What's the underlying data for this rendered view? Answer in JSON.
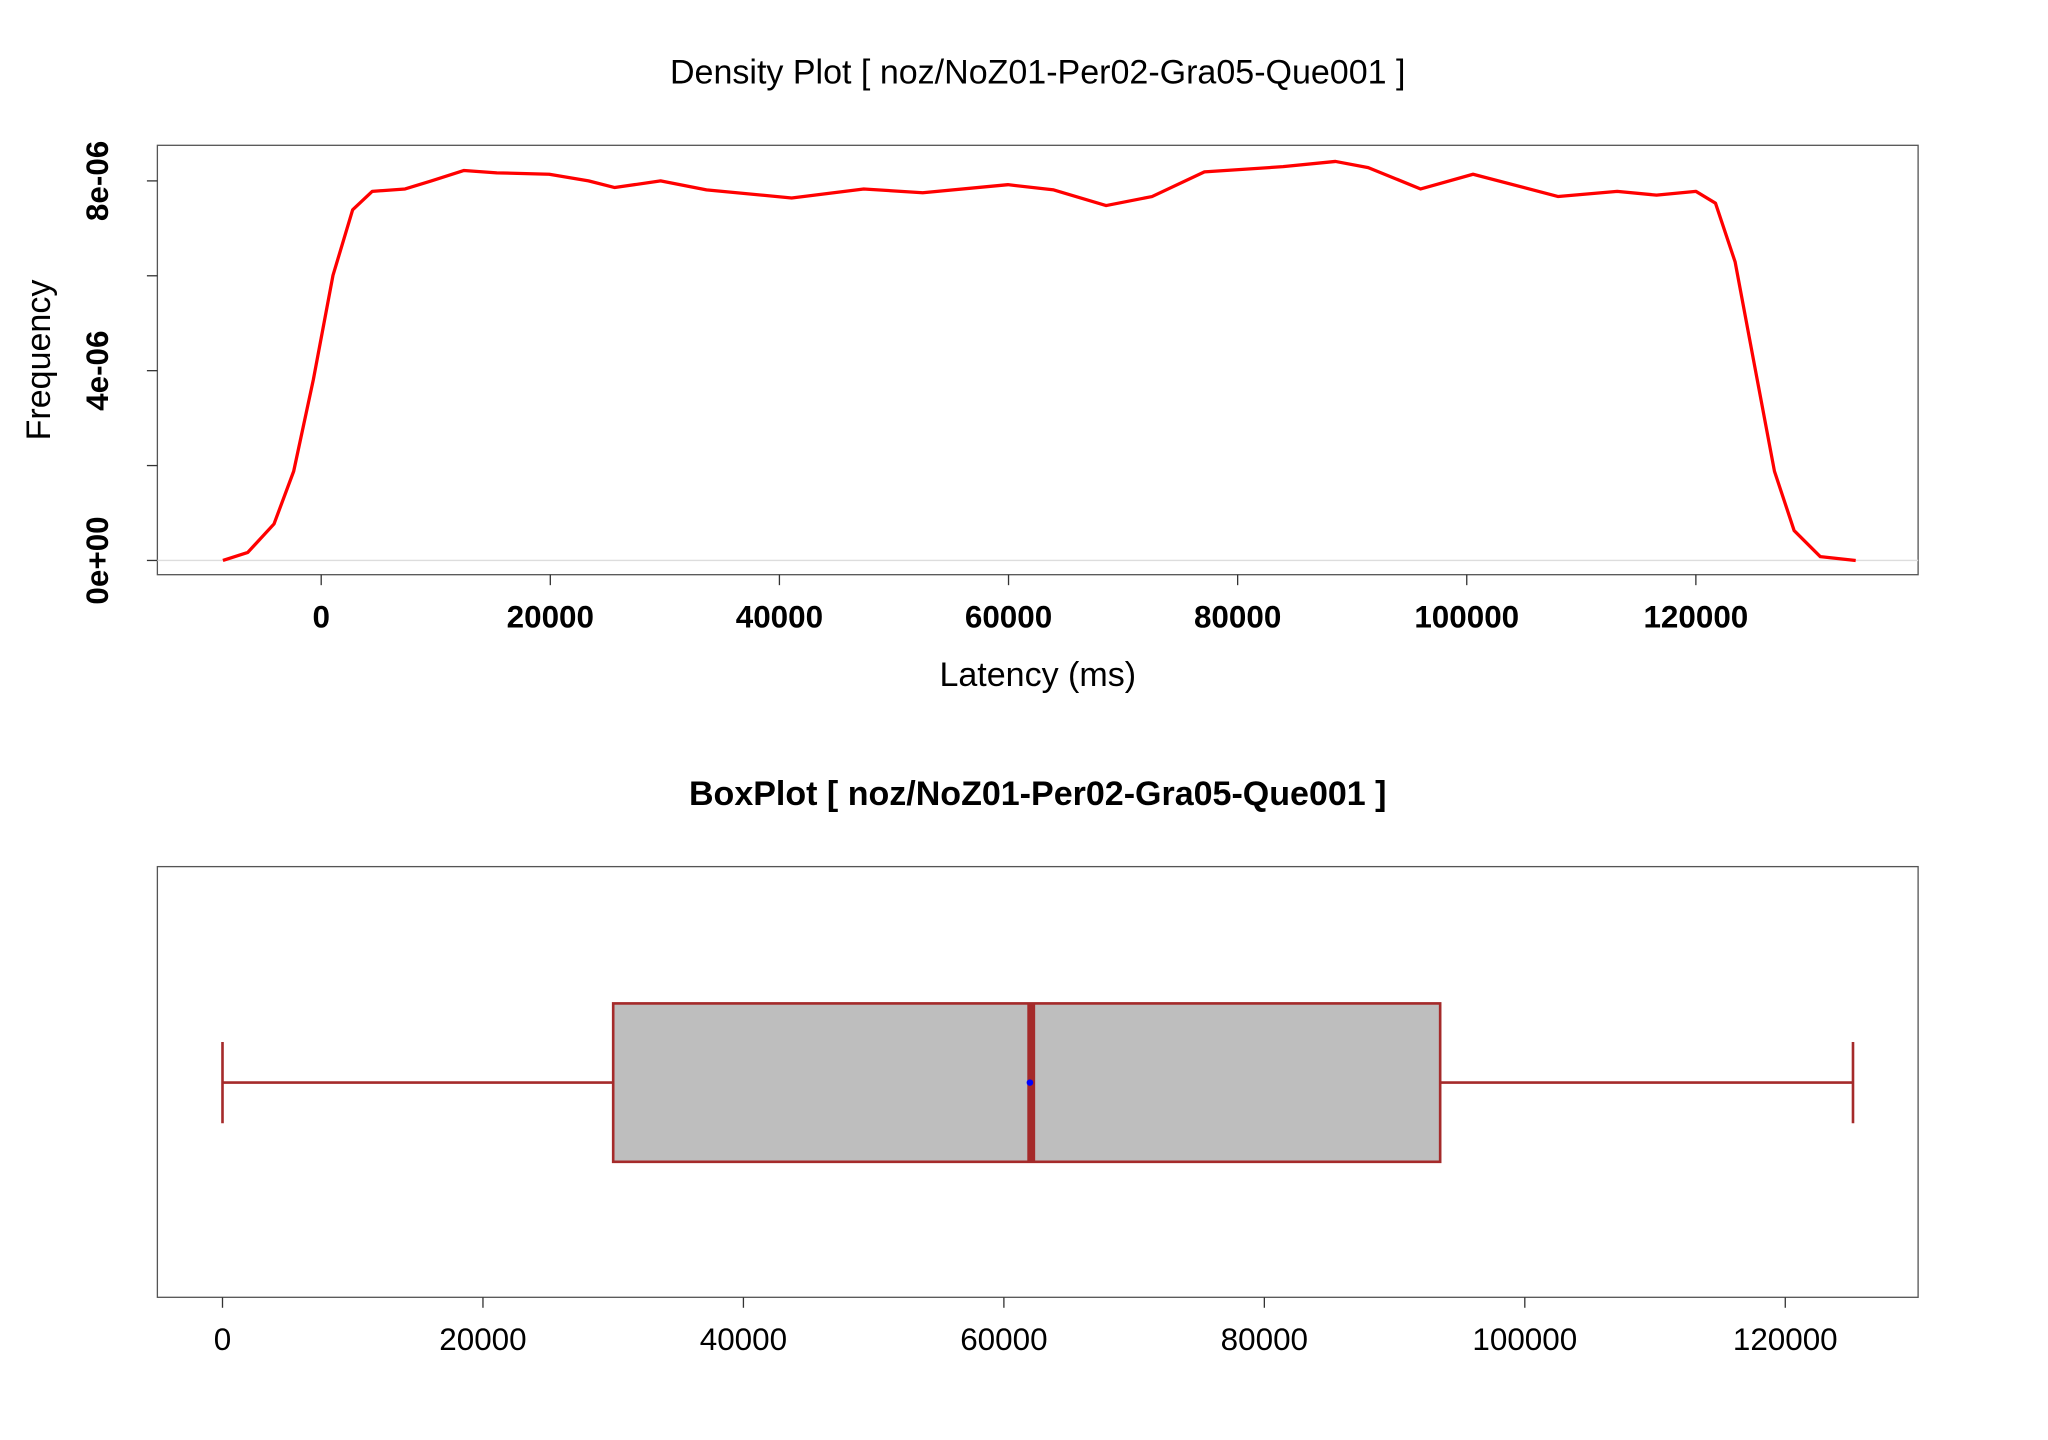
{
  "chart_data": [
    {
      "type": "line",
      "title": "Density Plot [ noz/NoZ01-Per02-Gra05-Que001 ]",
      "x_label": "Latency (ms)",
      "y_label": "Frequency",
      "color": "#ff0000",
      "x": [
        -8580,
        -6406,
        -4118,
        -2402,
        -686,
        1030,
        2745,
        4461,
        7321,
        9609,
        12469,
        15329,
        19904,
        23336,
        25624,
        29628,
        33631,
        41067,
        47358,
        52505,
        59941,
        63945,
        68520,
        72524,
        77100,
        83963,
        88539,
        91399,
        95975,
        100550,
        107986,
        113133,
        116565,
        119997,
        121713,
        123429,
        125145,
        126861,
        128577,
        130865,
        133953
      ],
      "values": [
        0,
        1.7e-07,
        7.7e-07,
        1.88e-06,
        3.81e-06,
        6.01e-06,
        7.39e-06,
        7.78e-06,
        7.83e-06,
        8e-06,
        8.22e-06,
        8.17e-06,
        8.14e-06,
        8e-06,
        7.86e-06,
        8e-06,
        7.81e-06,
        7.64e-06,
        7.83e-06,
        7.75e-06,
        7.92e-06,
        7.81e-06,
        7.48e-06,
        7.67e-06,
        8.19e-06,
        8.3e-06,
        8.41e-06,
        8.28e-06,
        7.83e-06,
        8.14e-06,
        7.67e-06,
        7.78e-06,
        7.7e-06,
        7.78e-06,
        7.53e-06,
        6.29e-06,
        4.08e-06,
        1.88e-06,
        6.3e-07,
        8e-08,
        0
      ],
      "xlim": [
        -14300,
        139400
      ],
      "xticks": [
        0,
        20000,
        40000,
        60000,
        80000,
        100000,
        120000
      ],
      "ylim": [
        -3e-07,
        8.75e-06
      ],
      "yticks": [
        {
          "value": 0,
          "label": "0e+00"
        },
        {
          "value": 2e-06,
          "label": null
        },
        {
          "value": 4e-06,
          "label": "4e-06"
        },
        {
          "value": 6e-06,
          "label": null
        },
        {
          "value": 8e-06,
          "label": "8e-06"
        }
      ]
    },
    {
      "type": "box",
      "title": "BoxPlot [ noz/NoZ01-Per02-Gra05-Que001 ]",
      "min": 0,
      "q1": 30000,
      "median": 62100,
      "q3": 93500,
      "max": 125200,
      "mean": 62000,
      "color": "#a52a2a",
      "fill": "#bebebe",
      "mean_color": "#0000ff",
      "xlim": [
        -5000,
        130200
      ],
      "xticks": [
        0,
        20000,
        40000,
        60000,
        80000,
        100000,
        120000
      ]
    }
  ]
}
